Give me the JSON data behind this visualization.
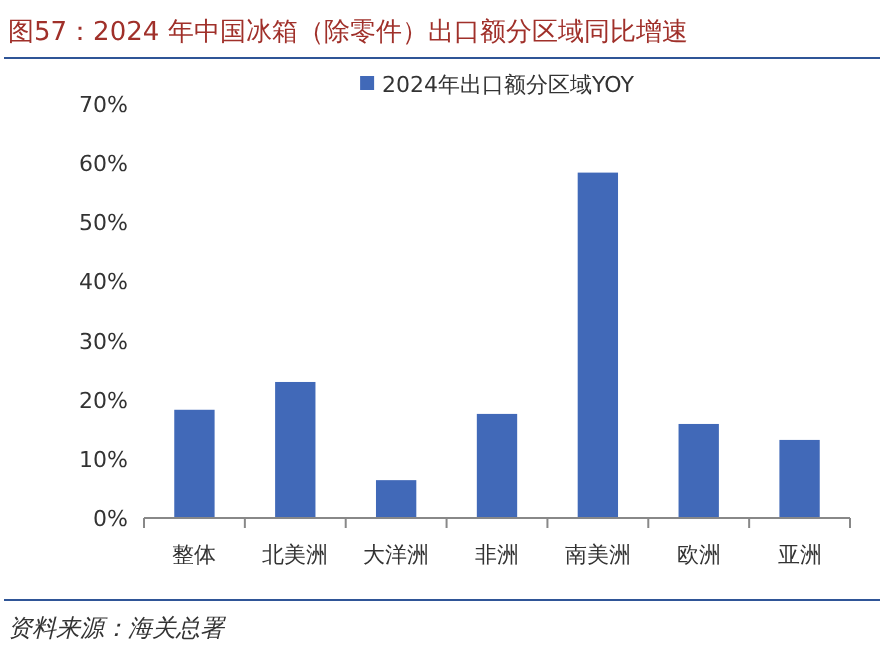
{
  "chart_data": {
    "type": "bar",
    "title": "图57：2024 年中国冰箱（除零件）出口额分区域同比增速",
    "categories": [
      "整体",
      "北美洲",
      "大洋洲",
      "非洲",
      "南美洲",
      "欧洲",
      "亚洲"
    ],
    "series": [
      {
        "name": "2024年出口额分区域YOY",
        "color": "#4169b8",
        "values": [
          18.3,
          23.0,
          6.4,
          17.6,
          58.4,
          15.9,
          13.2
        ]
      }
    ],
    "ylim": [
      0,
      70
    ],
    "yticks": [
      {
        "value": 0,
        "label": "0%"
      },
      {
        "value": 10,
        "label": "10%"
      },
      {
        "value": 20,
        "label": "20%"
      },
      {
        "value": 30,
        "label": "30%"
      },
      {
        "value": 40,
        "label": "40%"
      },
      {
        "value": 50,
        "label": "50%"
      },
      {
        "value": 60,
        "label": "60%"
      },
      {
        "value": 70,
        "label": "70%"
      }
    ],
    "legend": "top",
    "grid": false,
    "annotations": [
      "资料来源：海关总署"
    ]
  }
}
